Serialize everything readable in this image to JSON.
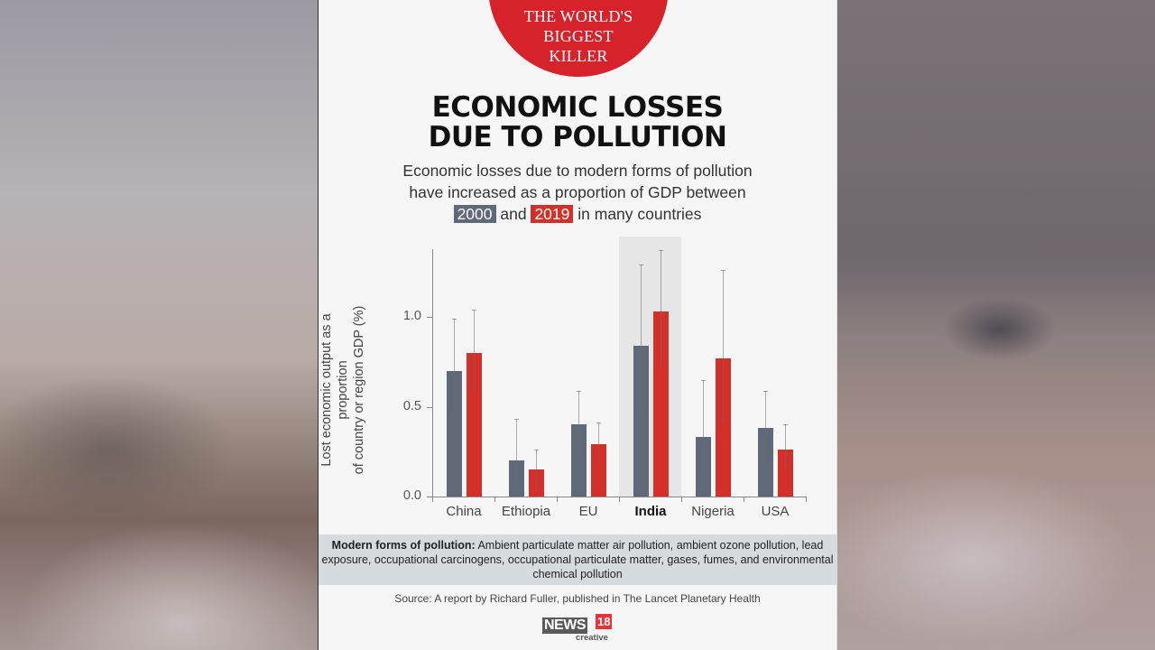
{
  "badge": {
    "lines": [
      "THE WORLD'S",
      "BIGGEST",
      "KILLER"
    ],
    "color": "#d6222b"
  },
  "title": {
    "line1": "ECONOMIC LOSSES",
    "line2": "DUE TO POLLUTION"
  },
  "subtitle": {
    "line1": "Economic losses due to modern forms of pollution",
    "line2": "have increased as a proportion of GDP between",
    "year_a": "2000",
    "connector": "and",
    "year_b": "2019",
    "tail": "in many countries"
  },
  "chart_data": {
    "type": "bar",
    "title": "Economic losses due to pollution",
    "xlabel": "",
    "ylabel": "Lost economic output as a proportion of country or region GDP (%)",
    "ylim": [
      0,
      1.4
    ],
    "yticks": [
      "0.0",
      "0.5",
      "1.0"
    ],
    "grid": false,
    "legend_position": "subtitle (colored year chips)",
    "categories": [
      "China",
      "Ethiopia",
      "EU",
      "India",
      "Nigeria",
      "USA"
    ],
    "highlighted_category": "India",
    "series": [
      {
        "name": "2000",
        "color": "#5f6977",
        "values": [
          0.7,
          0.2,
          0.4,
          0.84,
          0.33,
          0.38
        ],
        "error_low": [
          0.44,
          0.07,
          0.23,
          0.47,
          0.13,
          0.19
        ],
        "error_high": [
          0.99,
          0.43,
          0.59,
          1.29,
          0.65,
          0.59
        ]
      },
      {
        "name": "2019",
        "color": "#d4302a",
        "values": [
          0.8,
          0.15,
          0.29,
          1.03,
          0.77,
          0.26
        ],
        "error_low": [
          0.59,
          0.04,
          0.19,
          0.72,
          0.41,
          0.15
        ],
        "error_high": [
          1.04,
          0.26,
          0.41,
          1.37,
          1.26,
          0.4
        ]
      }
    ]
  },
  "ylabel": {
    "line1": "Lost economic output as a proportion",
    "line2": "of country or region GDP (%)"
  },
  "note": {
    "label": "Modern forms of pollution:",
    "text": " Ambient particulate matter air pollution, ambient ozone pollution, lead exposure, occupational carcinogens, occupational particulate matter, gases, fumes, and environmental chemical pollution"
  },
  "source": "Source: A report by Richard Fuller, published in The Lancet Planetary Health",
  "logo": {
    "word": "NEWS",
    "number": "18",
    "tag": "creative"
  }
}
